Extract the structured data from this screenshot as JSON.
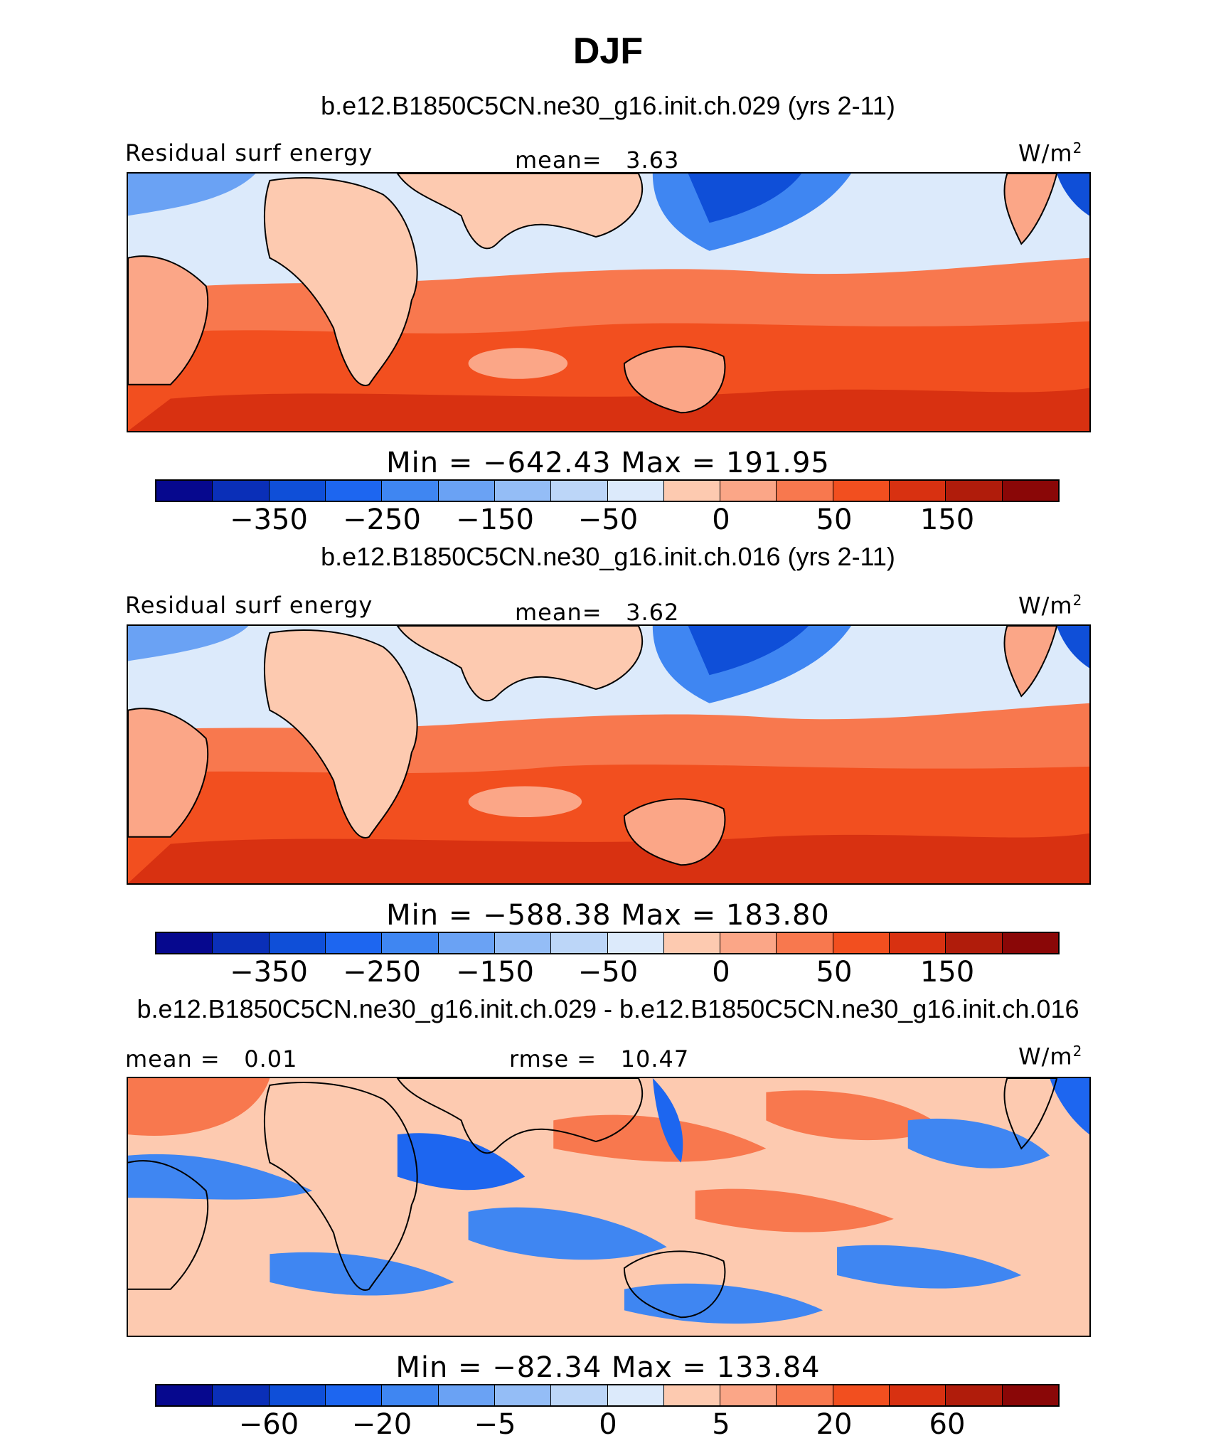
{
  "title": "DJF",
  "colorbar_colors": [
    "#06088e",
    "#0a2fb8",
    "#0f4fd8",
    "#1d66f0",
    "#3f86f2",
    "#6aa2f4",
    "#94bdf6",
    "#bcd6f8",
    "#dceafb",
    "#feebdc",
    "#fdcab0",
    "#fba687",
    "#f8784e",
    "#f24f1f",
    "#d83111",
    "#b01c0b",
    "#8a0707"
  ],
  "panels": [
    {
      "title": "b.e12.B1850C5CN.ne30_g16.init.ch.029 (yrs 2-11)",
      "left_label": "Residual surf energy",
      "center_label": "mean=   3.63",
      "unit": "W/m",
      "unit_sup": "2",
      "minmax": "Min = −642.43 Max = 191.95",
      "ticks": [
        "−350",
        "−250",
        "−150",
        "−50",
        "0",
        "50",
        "150"
      ]
    },
    {
      "title": "b.e12.B1850C5CN.ne30_g16.init.ch.016 (yrs 2-11)",
      "left_label": "Residual surf energy",
      "center_label": "mean=   3.62",
      "unit": "W/m",
      "unit_sup": "2",
      "minmax": "Min = −588.38 Max = 183.80",
      "ticks": [
        "−350",
        "−250",
        "−150",
        "−50",
        "0",
        "50",
        "150"
      ]
    },
    {
      "title": "b.e12.B1850C5CN.ne30_g16.init.ch.029 - b.e12.B1850C5CN.ne30_g16.init.ch.016",
      "left_label": "mean =   0.01",
      "center_label": "rmse =   10.47",
      "unit": "W/m",
      "unit_sup": "2",
      "minmax": "Min = −82.34 Max = 133.84",
      "ticks": [
        "−60",
        "−20",
        "−5",
        "0",
        "5",
        "20",
        "60"
      ]
    }
  ]
}
